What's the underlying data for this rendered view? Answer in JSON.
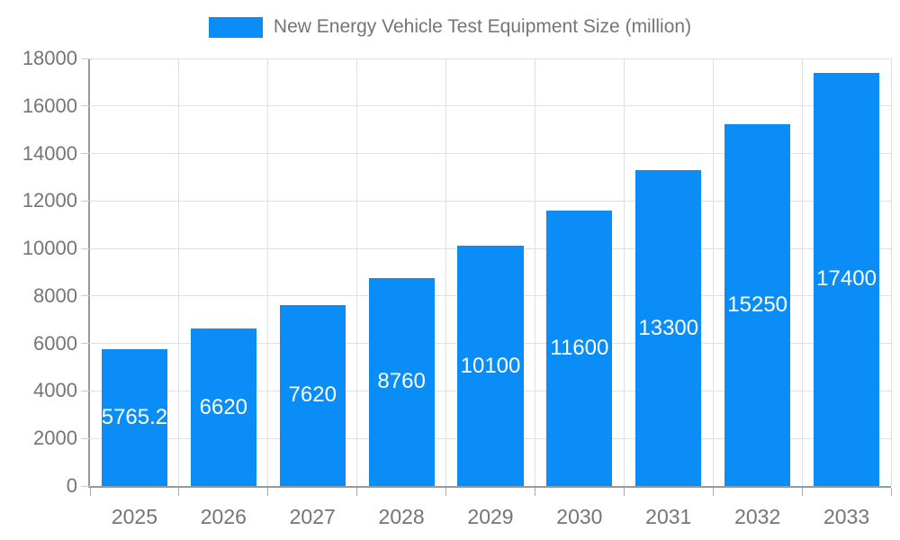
{
  "legend": {
    "label": "New Energy Vehicle Test Equipment Size (million)"
  },
  "chart_data": {
    "type": "bar",
    "title": "New Energy Vehicle Test Equipment Size (million)",
    "categories": [
      "2025",
      "2026",
      "2027",
      "2028",
      "2029",
      "2030",
      "2031",
      "2032",
      "2033"
    ],
    "values": [
      5765.2,
      6620,
      7620,
      8760,
      10100,
      11600,
      13300,
      15250,
      17400
    ],
    "value_labels": [
      "5765.2",
      "6620",
      "7620",
      "8760",
      "10100",
      "11600",
      "13300",
      "15250",
      "17400"
    ],
    "xlabel": "",
    "ylabel": "",
    "ylim": [
      0,
      18000
    ],
    "yticks": [
      0,
      2000,
      4000,
      6000,
      8000,
      10000,
      12000,
      14000,
      16000,
      18000
    ],
    "grid": true,
    "legend_position": "top",
    "colors": {
      "bar": "#0a8df7",
      "value_label": "#ffffff",
      "axis_text": "#757575",
      "axis_line": "#999999",
      "gridline": "#e0e0e0",
      "ytick": "#cccccc",
      "xtick": "#aaaaaa"
    }
  }
}
